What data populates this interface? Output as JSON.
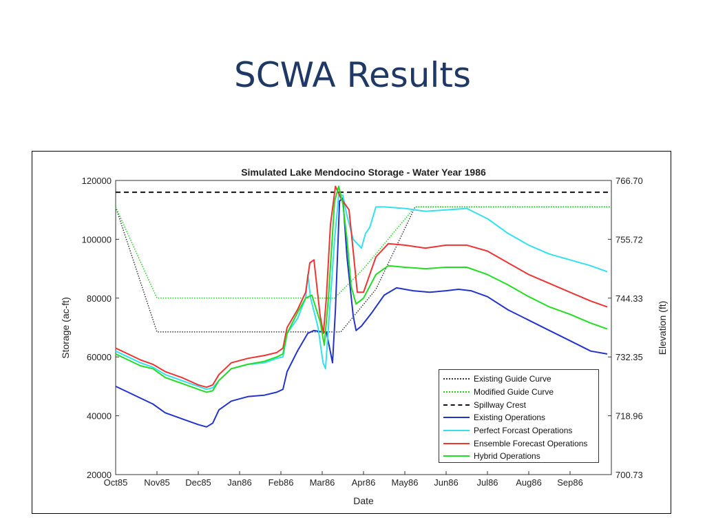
{
  "slide": {
    "title": "SCWA Results"
  },
  "chart_data": {
    "type": "line",
    "title": "Simulated Lake Mendocino Storage - Water Year 1986",
    "xlabel": "Date",
    "ylabel": "Storage (ac-ft)",
    "ylabel_right": "Elevation (ft)",
    "ylim": [
      20000,
      120000
    ],
    "xlim": [
      0,
      12
    ],
    "x_ticks": [
      "Oct85",
      "Nov85",
      "Dec85",
      "Jan86",
      "Feb86",
      "Mar86",
      "Apr86",
      "May86",
      "Jun86",
      "Jul86",
      "Aug86",
      "Sep86"
    ],
    "y_ticks": [
      20000,
      40000,
      60000,
      80000,
      100000,
      120000
    ],
    "y_ticks_right": [
      "700.73",
      "718.96",
      "732.35",
      "744.33",
      "755.72",
      "766.70"
    ],
    "grid": false,
    "legend_position": "lower-right",
    "series": [
      {
        "name": "Existing Guide Curve",
        "color": "#333333",
        "style": "dotted",
        "points": [
          [
            0,
            111000
          ],
          [
            1.0,
            68500
          ],
          [
            5.0,
            68500
          ],
          [
            5.45,
            68500
          ],
          [
            6.3,
            83000
          ],
          [
            7.25,
            111000
          ],
          [
            12,
            111000
          ]
        ]
      },
      {
        "name": "Modified Guide Curve",
        "color": "#22cc22",
        "style": "dotted",
        "points": [
          [
            0,
            111000
          ],
          [
            1.0,
            80000
          ],
          [
            5.3,
            80000
          ],
          [
            6.0,
            90000
          ],
          [
            7.25,
            111000
          ],
          [
            12,
            111000
          ]
        ]
      },
      {
        "name": "Spillway Crest",
        "color": "#111111",
        "style": "dashed",
        "points": [
          [
            0,
            116000
          ],
          [
            12,
            116000
          ]
        ]
      },
      {
        "name": "Existing Operations",
        "color": "#2233cc",
        "style": "solid",
        "points": [
          [
            0,
            50000
          ],
          [
            0.3,
            48000
          ],
          [
            0.6,
            46000
          ],
          [
            0.9,
            44000
          ],
          [
            1.2,
            41000
          ],
          [
            1.6,
            39000
          ],
          [
            2.0,
            37000
          ],
          [
            2.2,
            36200
          ],
          [
            2.35,
            37500
          ],
          [
            2.5,
            42000
          ],
          [
            2.8,
            45000
          ],
          [
            3.2,
            46500
          ],
          [
            3.6,
            47000
          ],
          [
            3.9,
            48000
          ],
          [
            4.05,
            49000
          ],
          [
            4.15,
            55000
          ],
          [
            4.4,
            62000
          ],
          [
            4.65,
            68000
          ],
          [
            4.8,
            69000
          ],
          [
            5.0,
            68500
          ],
          [
            5.1,
            68500
          ],
          [
            5.18,
            63000
          ],
          [
            5.25,
            58000
          ],
          [
            5.32,
            76000
          ],
          [
            5.42,
            113000
          ],
          [
            5.5,
            114000
          ],
          [
            5.6,
            94000
          ],
          [
            5.75,
            74000
          ],
          [
            5.82,
            69000
          ],
          [
            5.95,
            70500
          ],
          [
            6.2,
            75000
          ],
          [
            6.5,
            81000
          ],
          [
            6.8,
            83500
          ],
          [
            7.2,
            82500
          ],
          [
            7.6,
            82000
          ],
          [
            8.0,
            82500
          ],
          [
            8.3,
            83000
          ],
          [
            8.6,
            82500
          ],
          [
            9.0,
            80500
          ],
          [
            9.5,
            76000
          ],
          [
            10.0,
            72500
          ],
          [
            10.5,
            69000
          ],
          [
            11.0,
            65500
          ],
          [
            11.5,
            62000
          ],
          [
            11.9,
            61000
          ]
        ]
      },
      {
        "name": "Perfect Forcast Operations",
        "color": "#33e0f0",
        "style": "solid",
        "points": [
          [
            0,
            62000
          ],
          [
            0.3,
            60000
          ],
          [
            0.6,
            58000
          ],
          [
            0.9,
            56500
          ],
          [
            1.2,
            54000
          ],
          [
            1.6,
            52000
          ],
          [
            2.0,
            50000
          ],
          [
            2.2,
            49000
          ],
          [
            2.35,
            49500
          ],
          [
            2.5,
            52000
          ],
          [
            2.8,
            56000
          ],
          [
            3.2,
            57500
          ],
          [
            3.6,
            58000
          ],
          [
            3.9,
            59500
          ],
          [
            4.05,
            60000
          ],
          [
            4.15,
            68000
          ],
          [
            4.4,
            73000
          ],
          [
            4.6,
            80000
          ],
          [
            4.65,
            88000
          ],
          [
            4.72,
            80000
          ],
          [
            4.9,
            70000
          ],
          [
            5.02,
            58000
          ],
          [
            5.08,
            56000
          ],
          [
            5.15,
            70000
          ],
          [
            5.3,
            100000
          ],
          [
            5.4,
            115000
          ],
          [
            5.5,
            115000
          ],
          [
            5.6,
            108000
          ],
          [
            5.75,
            100000
          ],
          [
            5.95,
            97000
          ],
          [
            6.05,
            102000
          ],
          [
            6.15,
            104000
          ],
          [
            6.3,
            111000
          ],
          [
            6.5,
            111000
          ],
          [
            7.0,
            110500
          ],
          [
            7.5,
            109500
          ],
          [
            8.0,
            110000
          ],
          [
            8.5,
            110500
          ],
          [
            9.0,
            107000
          ],
          [
            9.5,
            102000
          ],
          [
            10.0,
            98000
          ],
          [
            10.5,
            95000
          ],
          [
            11.0,
            93000
          ],
          [
            11.5,
            91000
          ],
          [
            11.9,
            89000
          ]
        ]
      },
      {
        "name": "Ensemble Forecast Operations",
        "color": "#ee3333",
        "style": "solid",
        "points": [
          [
            0,
            63000
          ],
          [
            0.3,
            61000
          ],
          [
            0.6,
            59000
          ],
          [
            0.9,
            57500
          ],
          [
            1.2,
            55000
          ],
          [
            1.6,
            53000
          ],
          [
            2.0,
            50500
          ],
          [
            2.2,
            49700
          ],
          [
            2.35,
            50500
          ],
          [
            2.5,
            54000
          ],
          [
            2.8,
            58000
          ],
          [
            3.2,
            59500
          ],
          [
            3.6,
            60500
          ],
          [
            3.9,
            61500
          ],
          [
            4.05,
            63000
          ],
          [
            4.15,
            70000
          ],
          [
            4.4,
            76000
          ],
          [
            4.6,
            82000
          ],
          [
            4.7,
            92000
          ],
          [
            4.8,
            93000
          ],
          [
            4.95,
            74000
          ],
          [
            5.03,
            68000
          ],
          [
            5.1,
            80000
          ],
          [
            5.2,
            105000
          ],
          [
            5.32,
            118000
          ],
          [
            5.45,
            114000
          ],
          [
            5.65,
            110000
          ],
          [
            5.75,
            96000
          ],
          [
            5.85,
            82000
          ],
          [
            6.0,
            82000
          ],
          [
            6.3,
            94000
          ],
          [
            6.6,
            98500
          ],
          [
            7.0,
            98000
          ],
          [
            7.5,
            97000
          ],
          [
            8.0,
            98000
          ],
          [
            8.5,
            98000
          ],
          [
            9.0,
            96000
          ],
          [
            9.5,
            92000
          ],
          [
            10.0,
            88000
          ],
          [
            10.5,
            85000
          ],
          [
            11.0,
            82000
          ],
          [
            11.5,
            79000
          ],
          [
            11.9,
            77000
          ]
        ]
      },
      {
        "name": "Hybrid Operations",
        "color": "#22dd22",
        "style": "solid",
        "points": [
          [
            0,
            61000
          ],
          [
            0.3,
            59000
          ],
          [
            0.6,
            57000
          ],
          [
            0.9,
            56000
          ],
          [
            1.2,
            53000
          ],
          [
            1.6,
            51000
          ],
          [
            2.0,
            49000
          ],
          [
            2.2,
            48000
          ],
          [
            2.35,
            48500
          ],
          [
            2.5,
            52000
          ],
          [
            2.8,
            56000
          ],
          [
            3.2,
            57500
          ],
          [
            3.6,
            58500
          ],
          [
            3.9,
            60000
          ],
          [
            4.05,
            61000
          ],
          [
            4.15,
            68000
          ],
          [
            4.4,
            75000
          ],
          [
            4.6,
            80000
          ],
          [
            4.75,
            81000
          ],
          [
            4.95,
            72000
          ],
          [
            5.05,
            64000
          ],
          [
            5.15,
            80000
          ],
          [
            5.3,
            113000
          ],
          [
            5.4,
            118000
          ],
          [
            5.5,
            112000
          ],
          [
            5.6,
            100000
          ],
          [
            5.7,
            84000
          ],
          [
            5.82,
            78000
          ],
          [
            6.0,
            80000
          ],
          [
            6.3,
            88000
          ],
          [
            6.6,
            91000
          ],
          [
            7.0,
            90500
          ],
          [
            7.5,
            90000
          ],
          [
            8.0,
            90500
          ],
          [
            8.5,
            90500
          ],
          [
            9.0,
            88000
          ],
          [
            9.5,
            84500
          ],
          [
            10.0,
            80500
          ],
          [
            10.5,
            77000
          ],
          [
            11.0,
            74500
          ],
          [
            11.5,
            71500
          ],
          [
            11.9,
            69500
          ]
        ]
      }
    ]
  }
}
